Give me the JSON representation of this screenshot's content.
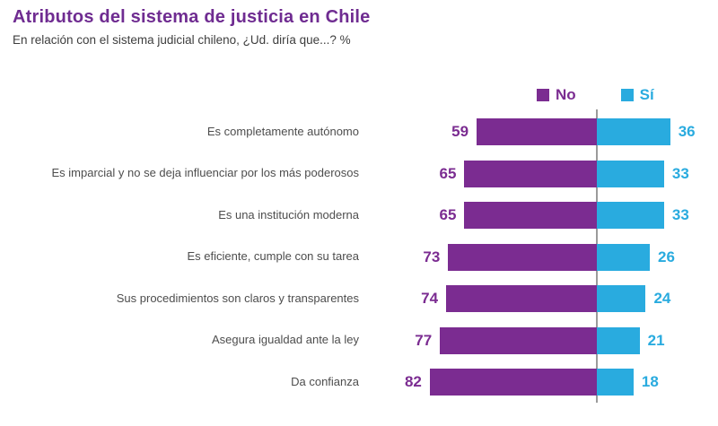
{
  "header": {
    "title": "Atributos del sistema de justicia en Chile",
    "subtitle": "En relación con el sistema judicial chileno, ¿Ud. diría que...? %"
  },
  "legend": {
    "no_label": "No",
    "si_label": "Sí"
  },
  "colors": {
    "no": "#7B2C91",
    "si": "#29ABDF",
    "title": "#6F2C91",
    "subtitle": "#3E3E3E",
    "category": "#4D4D4D",
    "axis_line": "#9B9B9B",
    "background": "#FFFFFF"
  },
  "chart_data": {
    "type": "bar",
    "variant": "diverging-horizontal",
    "title": "Atributos del sistema de justicia en Chile",
    "subtitle": "En relación con el sistema judicial chileno, ¿Ud. diría que...? %",
    "value_unit": "%",
    "axis_at_zero_between_series": true,
    "legend_position": "top-right",
    "categories": [
      "Es completamente autónomo",
      "Es imparcial y no se deja influenciar por los más poderosos",
      "Es una institución moderna",
      "Es eficiente, cumple con su tarea",
      "Sus procedimientos son claros y transparentes",
      "Asegura igualdad ante la ley",
      "Da confianza"
    ],
    "series": [
      {
        "name": "No",
        "direction": "left",
        "color": "#7B2C91",
        "values": [
          59,
          65,
          65,
          73,
          74,
          77,
          82
        ]
      },
      {
        "name": "Sí",
        "direction": "right",
        "color": "#29ABDF",
        "values": [
          36,
          33,
          33,
          26,
          24,
          21,
          18
        ]
      }
    ]
  }
}
